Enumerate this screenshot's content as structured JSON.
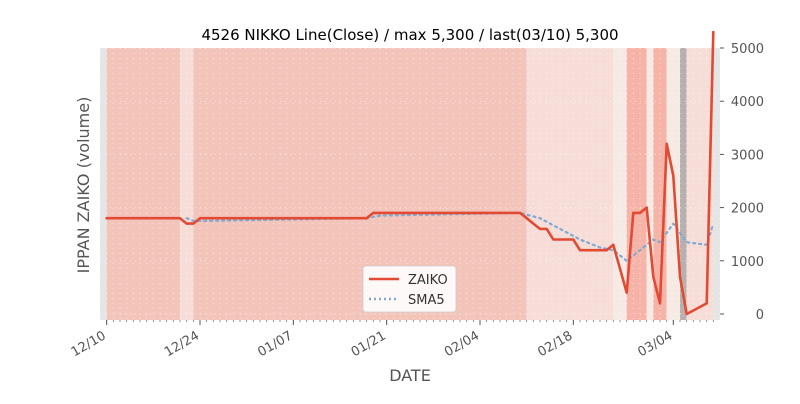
{
  "chart_data": {
    "type": "line",
    "title": "4526 NIKKO Line(Close) / max 5,300 / last(03/10) 5,300",
    "xlabel": "DATE",
    "ylabel": "IPPAN ZAIKO (volume)",
    "ylim": [
      0,
      5000
    ],
    "yticks": [
      0,
      1000,
      2000,
      3000,
      4000,
      5000
    ],
    "ytick_labels": [
      "0",
      "1000",
      "2000",
      "3000",
      "4000",
      "5000"
    ],
    "y_axis_side": "right",
    "x_range": [
      "2023-12-09",
      "2024-03-11"
    ],
    "xticks": [
      "2023-12-10",
      "2023-12-24",
      "2024-01-07",
      "2024-01-21",
      "2024-02-04",
      "2024-02-18",
      "2024-03-04"
    ],
    "xtick_labels": [
      "12/10",
      "12/24",
      "01/07",
      "01/21",
      "02/04",
      "02/18",
      "03/04"
    ],
    "grid": true,
    "legend_position": "bottom-center",
    "background_color": "#e5e5e5",
    "series": [
      {
        "name": "ZAIKO",
        "color": "#e24a33",
        "style": "solid",
        "points": [
          [
            "2023-12-10",
            1800
          ],
          [
            "2023-12-21",
            1800
          ],
          [
            "2023-12-22",
            1700
          ],
          [
            "2023-12-23",
            1700
          ],
          [
            "2023-12-24",
            1800
          ],
          [
            "2024-01-18",
            1800
          ],
          [
            "2024-01-19",
            1900
          ],
          [
            "2024-02-10",
            1900
          ],
          [
            "2024-02-11",
            1800
          ],
          [
            "2024-02-12",
            1700
          ],
          [
            "2024-02-13",
            1600
          ],
          [
            "2024-02-14",
            1600
          ],
          [
            "2024-02-15",
            1400
          ],
          [
            "2024-02-18",
            1400
          ],
          [
            "2024-02-19",
            1200
          ],
          [
            "2024-02-23",
            1200
          ],
          [
            "2024-02-24",
            1300
          ],
          [
            "2024-02-26",
            400
          ],
          [
            "2024-02-27",
            1900
          ],
          [
            "2024-02-28",
            1900
          ],
          [
            "2024-02-29",
            2000
          ],
          [
            "2024-03-01",
            700
          ],
          [
            "2024-03-02",
            200
          ],
          [
            "2024-03-03",
            3200
          ],
          [
            "2024-03-04",
            2600
          ],
          [
            "2024-03-05",
            700
          ],
          [
            "2024-03-06",
            0
          ],
          [
            "2024-03-09",
            200
          ],
          [
            "2024-03-10",
            5300
          ]
        ]
      },
      {
        "name": "SMA5",
        "color": "#7faad4",
        "style": "dotted",
        "points": [
          [
            "2023-12-22",
            1800
          ],
          [
            "2023-12-23",
            1750
          ],
          [
            "2023-12-25",
            1750
          ],
          [
            "2024-01-18",
            1800
          ],
          [
            "2024-01-20",
            1850
          ],
          [
            "2024-02-10",
            1900
          ],
          [
            "2024-02-13",
            1800
          ],
          [
            "2024-02-16",
            1600
          ],
          [
            "2024-02-19",
            1400
          ],
          [
            "2024-02-22",
            1250
          ],
          [
            "2024-02-24",
            1200
          ],
          [
            "2024-02-26",
            1000
          ],
          [
            "2024-02-28",
            1200
          ],
          [
            "2024-03-01",
            1400
          ],
          [
            "2024-03-02",
            1350
          ],
          [
            "2024-03-04",
            1700
          ],
          [
            "2024-03-06",
            1350
          ],
          [
            "2024-03-09",
            1300
          ],
          [
            "2024-03-10",
            1700
          ]
        ]
      }
    ],
    "background_bands": [
      {
        "start": "2023-12-10",
        "end": "2023-12-21",
        "color": "#f2c4ba"
      },
      {
        "start": "2023-12-21",
        "end": "2023-12-23",
        "color": "#f6ddd7"
      },
      {
        "start": "2023-12-23",
        "end": "2024-02-11",
        "color": "#f2c4ba"
      },
      {
        "start": "2024-02-11",
        "end": "2024-02-24",
        "color": "#f6ddd7"
      },
      {
        "start": "2024-02-24",
        "end": "2024-02-26",
        "color": "#f6eae4"
      },
      {
        "start": "2024-02-26",
        "end": "2024-02-29",
        "color": "#f5b4a7"
      },
      {
        "start": "2024-02-29",
        "end": "2024-03-01",
        "color": "#f6eae4"
      },
      {
        "start": "2024-03-01",
        "end": "2024-03-03",
        "color": "#f5b4a7"
      },
      {
        "start": "2024-03-03",
        "end": "2024-03-05",
        "color": "#f6eae4"
      },
      {
        "start": "2024-03-05",
        "end": "2024-03-06",
        "color": "#b8b0ae"
      },
      {
        "start": "2024-03-06",
        "end": "2024-03-10",
        "color": "#f6ddd7"
      }
    ]
  }
}
